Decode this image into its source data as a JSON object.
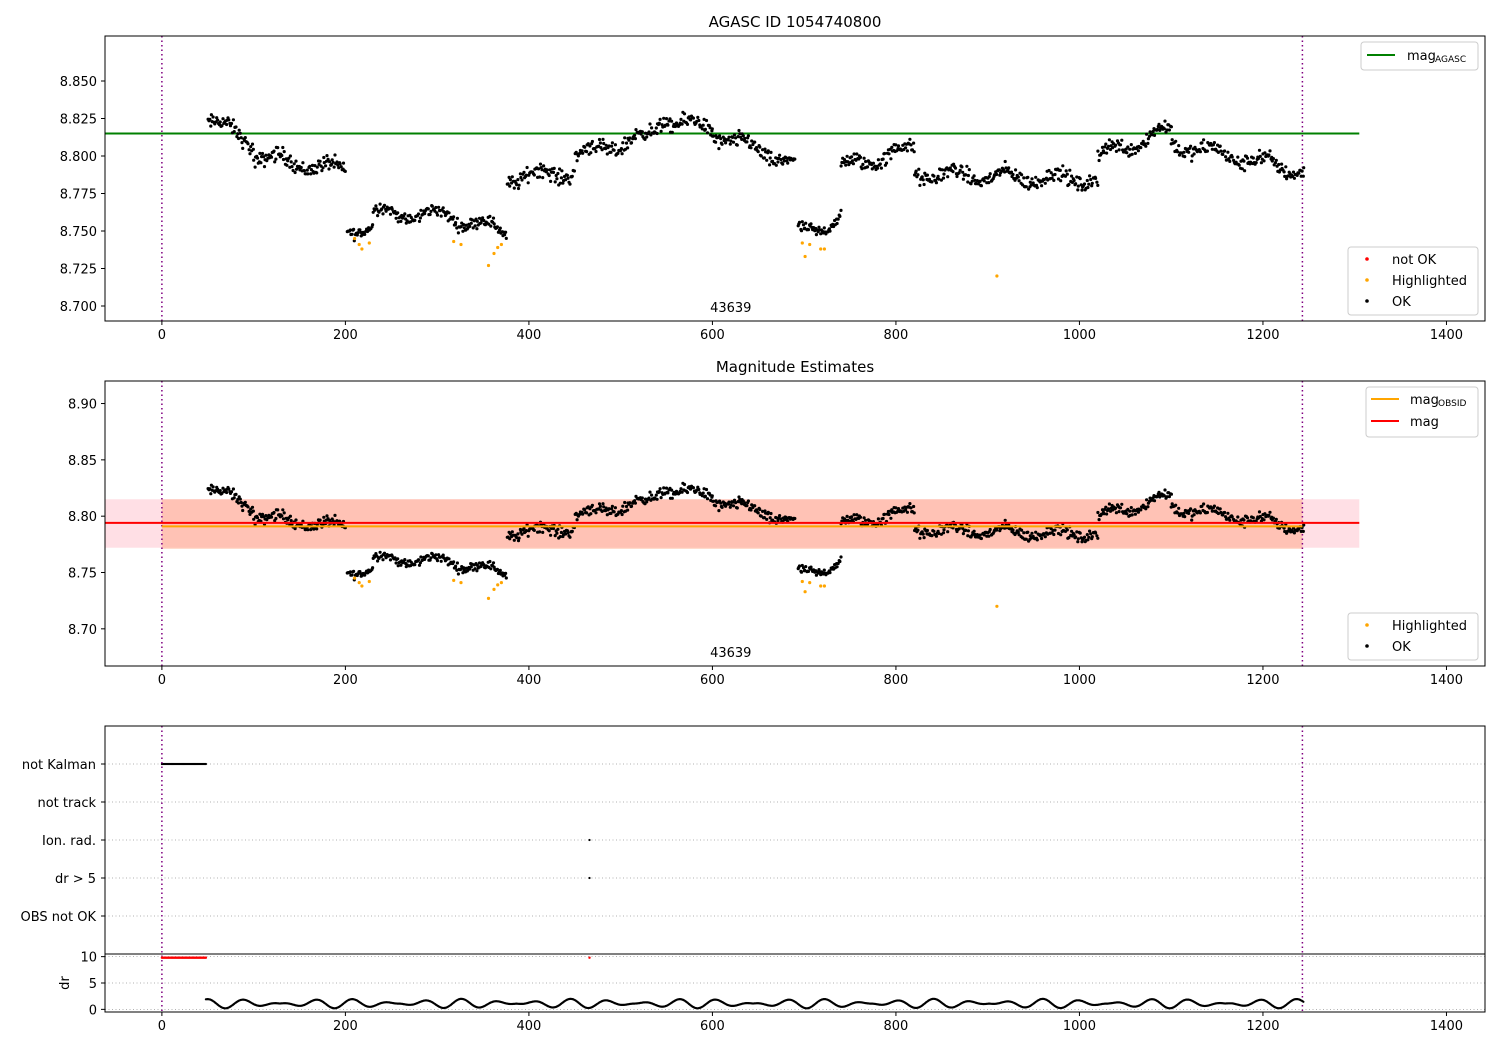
{
  "chart_data": [
    {
      "type": "scatter",
      "title": "AGASC ID 1054740800",
      "xlim": [
        -62,
        1442
      ],
      "ylim": [
        8.69,
        8.88
      ],
      "x_ticks": [
        0,
        200,
        400,
        600,
        800,
        1000,
        1200,
        1400
      ],
      "y_ticks": [
        8.7,
        8.725,
        8.75,
        8.775,
        8.8,
        8.825,
        8.85
      ],
      "tick_decimals": 3,
      "vlines": [
        0,
        1243
      ],
      "obsid_label": "43639",
      "obsid_label_x": 620,
      "ref_line": {
        "value": 8.815,
        "x_range": [
          -62,
          1305
        ],
        "color": "#008000",
        "name": "mag",
        "name_sub": "AGASC"
      },
      "legend_top": "top-right",
      "legend_bottom": "bottom-right",
      "categories": [
        {
          "name": "not OK",
          "color": "#ff0000"
        },
        {
          "name": "Highlighted",
          "color": "#ffa500"
        },
        {
          "name": "OK",
          "color": "#000000"
        }
      ],
      "segments": [
        {
          "x": [
            50,
            100
          ],
          "y": [
            8.825,
            8.808
          ],
          "noise": 0.0045
        },
        {
          "x": [
            100,
            200
          ],
          "y": [
            8.8,
            8.79
          ],
          "noise": 0.0045
        },
        {
          "x": [
            202,
            230
          ],
          "y": [
            8.752,
            8.752
          ],
          "noise": 0.0035
        },
        {
          "x": [
            230,
            320
          ],
          "y": [
            8.762,
            8.76
          ],
          "noise": 0.0035
        },
        {
          "x": [
            320,
            376
          ],
          "y": [
            8.758,
            8.75
          ],
          "noise": 0.0035
        },
        {
          "x": [
            376,
            450
          ],
          "y": [
            8.785,
            8.79
          ],
          "noise": 0.0045
        },
        {
          "x": [
            450,
            540
          ],
          "y": [
            8.8,
            8.815
          ],
          "noise": 0.0045
        },
        {
          "x": [
            540,
            600
          ],
          "y": [
            8.825,
            8.818
          ],
          "noise": 0.0045
        },
        {
          "x": [
            600,
            690
          ],
          "y": [
            8.815,
            8.795
          ],
          "noise": 0.0045
        },
        {
          "x": [
            693,
            740
          ],
          "y": [
            8.748,
            8.758
          ],
          "noise": 0.0035
        },
        {
          "x": [
            740,
            820
          ],
          "y": [
            8.792,
            8.805
          ],
          "noise": 0.0045
        },
        {
          "x": [
            820,
            1020
          ],
          "y": [
            8.788,
            8.784
          ],
          "noise": 0.0045
        },
        {
          "x": [
            1020,
            1100
          ],
          "y": [
            8.8,
            8.818
          ],
          "noise": 0.0045
        },
        {
          "x": [
            1100,
            1245
          ],
          "y": [
            8.808,
            8.79
          ],
          "noise": 0.0045
        }
      ],
      "highlighted": [
        [
          210,
          8.745
        ],
        [
          215,
          8.741
        ],
        [
          218,
          8.738
        ],
        [
          226,
          8.742
        ],
        [
          318,
          8.743
        ],
        [
          326,
          8.741
        ],
        [
          356,
          8.727
        ],
        [
          362,
          8.735
        ],
        [
          366,
          8.739
        ],
        [
          370,
          8.741
        ],
        [
          698,
          8.742
        ],
        [
          701,
          8.733
        ],
        [
          706,
          8.741
        ],
        [
          718,
          8.738
        ],
        [
          722,
          8.738
        ],
        [
          910,
          8.72
        ]
      ]
    },
    {
      "type": "scatter",
      "title": "Magnitude Estimates",
      "xlim": [
        -62,
        1442
      ],
      "ylim": [
        8.667,
        8.92
      ],
      "x_ticks": [
        0,
        200,
        400,
        600,
        800,
        1000,
        1200,
        1400
      ],
      "y_ticks": [
        8.7,
        8.75,
        8.8,
        8.85,
        8.9
      ],
      "tick_decimals": 2,
      "vlines": [
        0,
        1243
      ],
      "obsid_label": "43639",
      "obsid_label_x": 620,
      "mag_band": {
        "low": 8.772,
        "high": 8.815,
        "x_range": [
          -62,
          1305
        ],
        "color": "#ffc0cb"
      },
      "obsid_band": {
        "low": 8.771,
        "high": 8.815,
        "x_range": [
          0,
          1243
        ],
        "color": "#ffa07a"
      },
      "lines": [
        {
          "name": "mag",
          "name_sub": "OBSID",
          "value": 8.791,
          "x_range": [
            0,
            1243
          ],
          "color": "#ffa500"
        },
        {
          "name": "mag",
          "name_sub": "",
          "value": 8.794,
          "x_range": [
            -62,
            1305
          ],
          "color": "#ff0000"
        }
      ],
      "legend_top": "top-right",
      "legend_bottom": "bottom-right",
      "categories": [
        {
          "name": "Highlighted",
          "color": "#ffa500"
        },
        {
          "name": "OK",
          "color": "#000000"
        }
      ]
    },
    {
      "type": "scatter",
      "xlim": [
        -62,
        1442
      ],
      "x_ticks": [
        0,
        200,
        400,
        600,
        800,
        1000,
        1200,
        1400
      ],
      "flags": [
        "not Kalman",
        "not track",
        "Ion. rad.",
        "dr > 5",
        "OBS not OK"
      ],
      "flag_points": {
        "not Kalman": [
          [
            0,
            48
          ]
        ],
        "not track": [],
        "Ion. rad.": [
          [
            466,
            466
          ]
        ],
        "dr > 5": [
          [
            466,
            466
          ]
        ],
        "OBS not OK": []
      },
      "dr": {
        "ylabel": "dr",
        "ylim": [
          -0.5,
          10.5
        ],
        "y_ticks": [
          0,
          5,
          10
        ],
        "high_ranges": [
          [
            0,
            48
          ],
          [
            466,
            466
          ]
        ],
        "high_value": 9.8,
        "data_start": 48,
        "data_end": 1245,
        "mean": 1.1,
        "amplitude": 0.9
      },
      "vlines": [
        0,
        1243
      ]
    }
  ]
}
